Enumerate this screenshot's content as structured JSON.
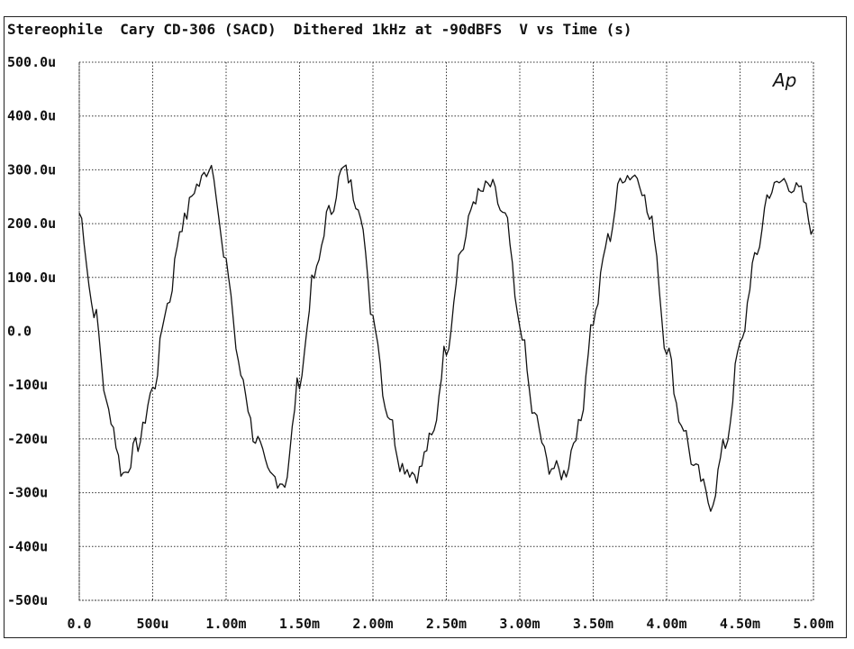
{
  "header": {
    "title": "Stereophile  Cary CD-306 (SACD)  Dithered 1kHz at -90dBFS  V vs Time (s)"
  },
  "logo": {
    "text": "Ap"
  },
  "colors": {
    "trace": "#111111",
    "grid": "#333333",
    "frame": "#222222",
    "background": "#ffffff"
  },
  "chart_data": {
    "type": "line",
    "title": "Stereophile  Cary CD-306 (SACD)  Dithered 1kHz at -90dBFS  V vs Time (s)",
    "xlabel": "",
    "ylabel": "",
    "xlim": [
      0,
      0.005
    ],
    "ylim": [
      -0.0005,
      0.0005
    ],
    "grid": true,
    "x_ticks": [
      0,
      0.0005,
      0.001,
      0.0015,
      0.002,
      0.0025,
      0.003,
      0.0035,
      0.004,
      0.0045,
      0.005
    ],
    "x_tick_labels": [
      "0.0",
      "500u",
      "1.00m",
      "1.50m",
      "2.00m",
      "2.50m",
      "3.00m",
      "3.50m",
      "4.00m",
      "4.50m",
      "5.00m"
    ],
    "y_ticks": [
      0.0005,
      0.0004,
      0.0003,
      0.0002,
      0.0001,
      0,
      -0.0001,
      -0.0002,
      -0.0003,
      -0.0004,
      -0.0005
    ],
    "y_tick_labels": [
      "500.0u",
      "400.0u",
      "300.0u",
      "200.0u",
      "100.0u",
      "0.0",
      "-100u",
      "-200u",
      "-300u",
      "-400u",
      "-500u"
    ],
    "series": [
      {
        "x": [
          0.0,
          0.0001,
          0.0002,
          0.0003,
          0.0004,
          0.0005,
          0.0006,
          0.0007,
          0.0008,
          0.0009,
          0.001,
          0.0011,
          0.0012,
          0.0013,
          0.0014,
          0.0015,
          0.0016,
          0.0017,
          0.0018,
          0.0019,
          0.002,
          0.0021,
          0.0022,
          0.0023,
          0.0024,
          0.0025,
          0.0026,
          0.0027,
          0.0028,
          0.0029,
          0.003,
          0.0031,
          0.0032,
          0.0033,
          0.0034,
          0.0035,
          0.0036,
          0.0037,
          0.0038,
          0.0039,
          0.004,
          0.0041,
          0.0042,
          0.0043,
          0.0044,
          0.0045,
          0.0046,
          0.0047,
          0.0048,
          0.0049,
          0.005
        ],
        "y": [
          0.00022,
          4e-05,
          -0.00015,
          -0.000265,
          -0.00021,
          -0.00011,
          5e-05,
          0.0002,
          0.00027,
          0.00031,
          0.00012,
          -8e-05,
          -0.0002,
          -0.00027,
          -0.00028,
          -9e-05,
          0.0001,
          0.00022,
          0.0003,
          0.00024,
          3e-05,
          -0.00015,
          -0.00025,
          -0.000265,
          -0.0002,
          -3e-05,
          0.00015,
          0.00025,
          0.00027,
          0.00021,
          1e-05,
          -0.00016,
          -0.00025,
          -0.000265,
          -0.00018,
          2e-05,
          0.00017,
          0.00029,
          0.00029,
          0.0002,
          -3e-05,
          -0.00017,
          -0.00026,
          -0.00032,
          -0.00021,
          -3e-05,
          0.00013,
          0.00026,
          0.00028,
          0.00026,
          0.00019
        ]
      }
    ]
  }
}
